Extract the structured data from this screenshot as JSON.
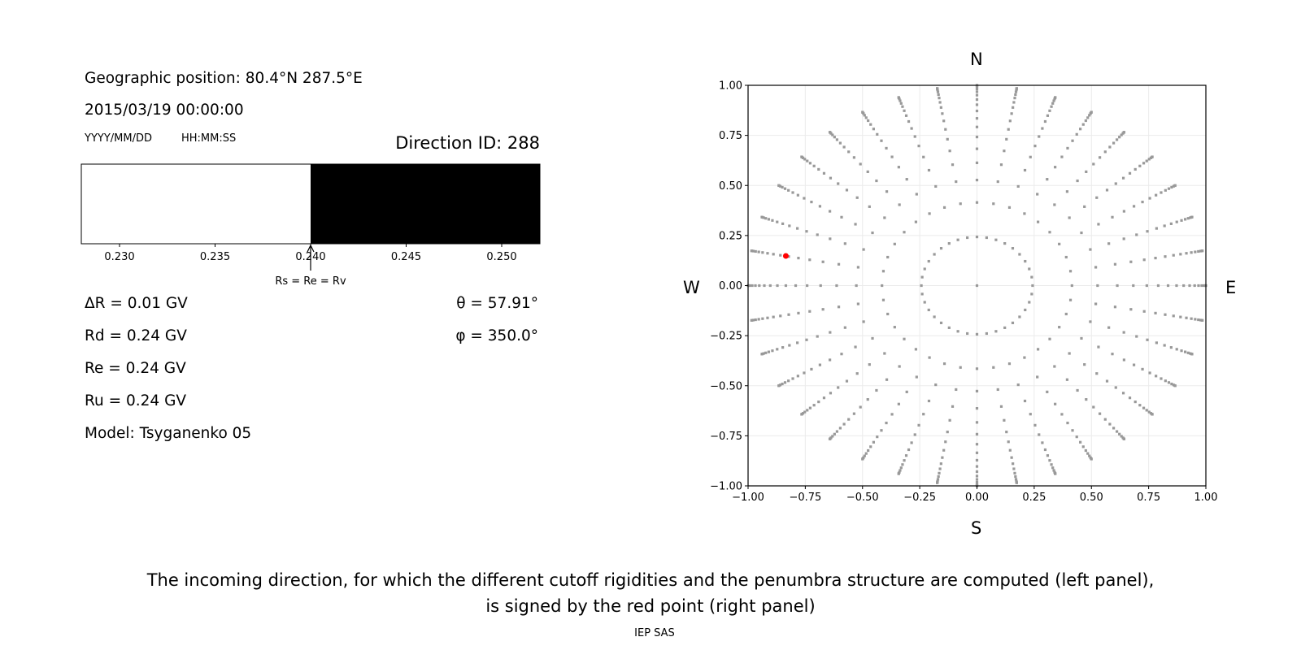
{
  "left_panel": {
    "geo_position": "Geographic position: 80.4°N 287.5°E",
    "datetime": "2015/03/19 00:00:00",
    "date_format": "YYYY/MM/DD",
    "time_format": "HH:MM:SS",
    "direction_id": "Direction ID: 288",
    "delta_r": "ΔR = 0.01 GV",
    "rd": "Rd = 0.24 GV",
    "re": "Re = 0.24 GV",
    "ru": "Ru = 0.24 GV",
    "model": "Model: Tsyganenko 05",
    "theta": "θ = 57.91°",
    "phi": "φ = 350.0°"
  },
  "right_panel": {
    "north": "N",
    "south": "S",
    "west": "W",
    "east": "E"
  },
  "caption": {
    "line1": "The incoming direction, for which the different cutoff rigidities and the penumbra structure are computed (left panel),",
    "line2": "is signed by the red point (right panel)",
    "credit": "IEP SAS"
  },
  "chart_data": [
    {
      "type": "bar",
      "title": "",
      "xlim": [
        0.228,
        0.252
      ],
      "xticks": [
        "0.230",
        "0.235",
        "0.240",
        "0.245",
        "0.250"
      ],
      "xtick_values": [
        0.23,
        0.235,
        0.24,
        0.245,
        0.25
      ],
      "segments": [
        {
          "from": 0.228,
          "to": 0.24,
          "color": "#ffffff"
        },
        {
          "from": 0.24,
          "to": 0.252,
          "color": "#000000"
        }
      ],
      "annotation": {
        "text": "Rs = Re = Rv",
        "x": 0.24
      }
    },
    {
      "type": "scatter",
      "xlim": [
        -1,
        1
      ],
      "ylim": [
        -1,
        1
      ],
      "grid": true,
      "xticks": [
        "−1.00",
        "−0.75",
        "−0.50",
        "−0.25",
        "0.00",
        "0.25",
        "0.50",
        "0.75",
        "1.00"
      ],
      "yticks": [
        "−1.00",
        "−0.75",
        "−0.50",
        "−0.25",
        "0.00",
        "0.25",
        "0.50",
        "0.75",
        "1.00"
      ],
      "tick_values": [
        -1,
        -0.75,
        -0.5,
        -0.25,
        0,
        0.25,
        0.5,
        0.75,
        1
      ],
      "directions_grid": {
        "azimuth_step_deg": 10,
        "radii": [
          0.243,
          0.415,
          0.527,
          0.613,
          0.683,
          0.742,
          0.792,
          0.835,
          0.872,
          0.903,
          0.929,
          0.951,
          0.968,
          0.982,
          0.992,
          0.998,
          1.0
        ],
        "center_point": [
          0,
          0
        ],
        "color": "#999999"
      },
      "selected_point": {
        "x": -0.835,
        "y": 0.148,
        "color": "#ff0000"
      }
    }
  ]
}
